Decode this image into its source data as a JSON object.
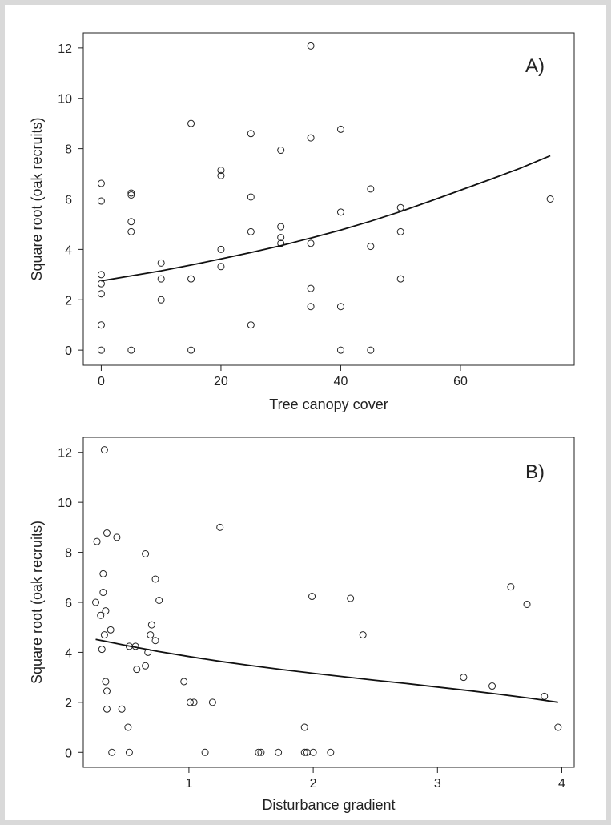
{
  "chart_data": [
    {
      "type": "scatter",
      "panel_label": "A)",
      "xlabel": "Tree canopy cover",
      "ylabel": "Square root (oak recruits)",
      "xlim": [
        -3,
        79
      ],
      "ylim": [
        -0.6,
        12.6
      ],
      "xticks": [
        0,
        20,
        40,
        60
      ],
      "yticks": [
        0,
        2,
        4,
        6,
        8,
        10,
        12
      ],
      "grid": false,
      "points": [
        [
          0,
          6.62
        ],
        [
          0,
          5.92
        ],
        [
          0,
          3.0
        ],
        [
          0,
          2.64
        ],
        [
          0,
          2.24
        ],
        [
          0,
          1.0
        ],
        [
          0,
          0
        ],
        [
          5,
          6.24
        ],
        [
          5,
          6.16
        ],
        [
          5,
          5.1
        ],
        [
          5,
          4.7
        ],
        [
          5,
          0
        ],
        [
          10,
          3.46
        ],
        [
          10,
          2.83
        ],
        [
          10,
          2.0
        ],
        [
          15,
          9.0
        ],
        [
          15,
          2.83
        ],
        [
          15,
          0
        ],
        [
          20,
          7.14
        ],
        [
          20,
          6.93
        ],
        [
          20,
          4.0
        ],
        [
          20,
          3.32
        ],
        [
          25,
          8.6
        ],
        [
          25,
          6.08
        ],
        [
          25,
          4.7
        ],
        [
          25,
          1.0
        ],
        [
          30,
          7.94
        ],
        [
          30,
          4.9
        ],
        [
          30,
          4.47
        ],
        [
          30,
          4.24
        ],
        [
          35,
          12.08
        ],
        [
          35,
          8.43
        ],
        [
          35,
          4.24
        ],
        [
          35,
          2.45
        ],
        [
          35,
          1.73
        ],
        [
          40,
          8.77
        ],
        [
          40,
          5.48
        ],
        [
          40,
          1.73
        ],
        [
          40,
          0
        ],
        [
          45,
          6.4
        ],
        [
          45,
          4.12
        ],
        [
          45,
          0
        ],
        [
          50,
          5.66
        ],
        [
          50,
          4.7
        ],
        [
          50,
          2.83
        ],
        [
          75,
          6.0
        ]
      ],
      "fit_line": {
        "x": [
          0,
          5,
          10,
          15,
          20,
          25,
          30,
          35,
          40,
          45,
          50,
          55,
          60,
          65,
          70,
          75
        ],
        "y": [
          2.75,
          2.95,
          3.15,
          3.38,
          3.62,
          3.88,
          4.15,
          4.45,
          4.77,
          5.12,
          5.5,
          5.92,
          6.35,
          6.78,
          7.22,
          7.72
        ]
      }
    },
    {
      "type": "scatter",
      "panel_label": "B)",
      "xlabel": "Disturbance gradient",
      "ylabel": "Square root (oak recruits)",
      "xlim": [
        0.15,
        4.1
      ],
      "ylim": [
        -0.6,
        12.6
      ],
      "xticks": [
        1,
        2,
        3,
        4
      ],
      "yticks": [
        0,
        2,
        4,
        6,
        8,
        10,
        12
      ],
      "grid": false,
      "points": [
        [
          0.32,
          12.1
        ],
        [
          0.26,
          8.43
        ],
        [
          0.34,
          8.77
        ],
        [
          0.42,
          8.6
        ],
        [
          0.31,
          7.14
        ],
        [
          0.25,
          6.0
        ],
        [
          0.31,
          6.4
        ],
        [
          0.29,
          5.48
        ],
        [
          0.33,
          5.66
        ],
        [
          0.32,
          4.7
        ],
        [
          0.37,
          4.9
        ],
        [
          0.3,
          4.12
        ],
        [
          0.33,
          2.83
        ],
        [
          0.34,
          2.45
        ],
        [
          0.34,
          1.73
        ],
        [
          0.38,
          0
        ],
        [
          0.46,
          1.73
        ],
        [
          0.51,
          1.0
        ],
        [
          0.52,
          0
        ],
        [
          0.52,
          4.24
        ],
        [
          0.57,
          4.24
        ],
        [
          0.58,
          3.32
        ],
        [
          0.65,
          3.46
        ],
        [
          0.67,
          4.0
        ],
        [
          0.69,
          4.7
        ],
        [
          0.7,
          5.1
        ],
        [
          0.73,
          4.47
        ],
        [
          0.73,
          6.93
        ],
        [
          0.76,
          6.08
        ],
        [
          0.65,
          7.94
        ],
        [
          0.96,
          2.83
        ],
        [
          1.01,
          2.0
        ],
        [
          1.04,
          2.0
        ],
        [
          1.13,
          0
        ],
        [
          1.19,
          2.0
        ],
        [
          1.25,
          9.0
        ],
        [
          1.56,
          0
        ],
        [
          1.58,
          0
        ],
        [
          1.72,
          0
        ],
        [
          1.93,
          1.0
        ],
        [
          1.93,
          0
        ],
        [
          1.95,
          0
        ],
        [
          1.99,
          6.24
        ],
        [
          2.0,
          0
        ],
        [
          2.14,
          0
        ],
        [
          2.3,
          6.16
        ],
        [
          2.4,
          4.7
        ],
        [
          3.21,
          3.0
        ],
        [
          3.44,
          2.65
        ],
        [
          3.59,
          6.62
        ],
        [
          3.72,
          5.92
        ],
        [
          3.86,
          2.24
        ],
        [
          3.97,
          1.0
        ]
      ],
      "fit_line": {
        "x": [
          0.25,
          0.5,
          0.75,
          1.0,
          1.25,
          1.5,
          1.75,
          2.0,
          2.25,
          2.5,
          2.75,
          3.0,
          3.25,
          3.5,
          3.75,
          3.97
        ],
        "y": [
          4.52,
          4.27,
          4.04,
          3.83,
          3.64,
          3.47,
          3.31,
          3.16,
          3.02,
          2.88,
          2.75,
          2.61,
          2.47,
          2.32,
          2.16,
          2.0
        ]
      }
    }
  ]
}
